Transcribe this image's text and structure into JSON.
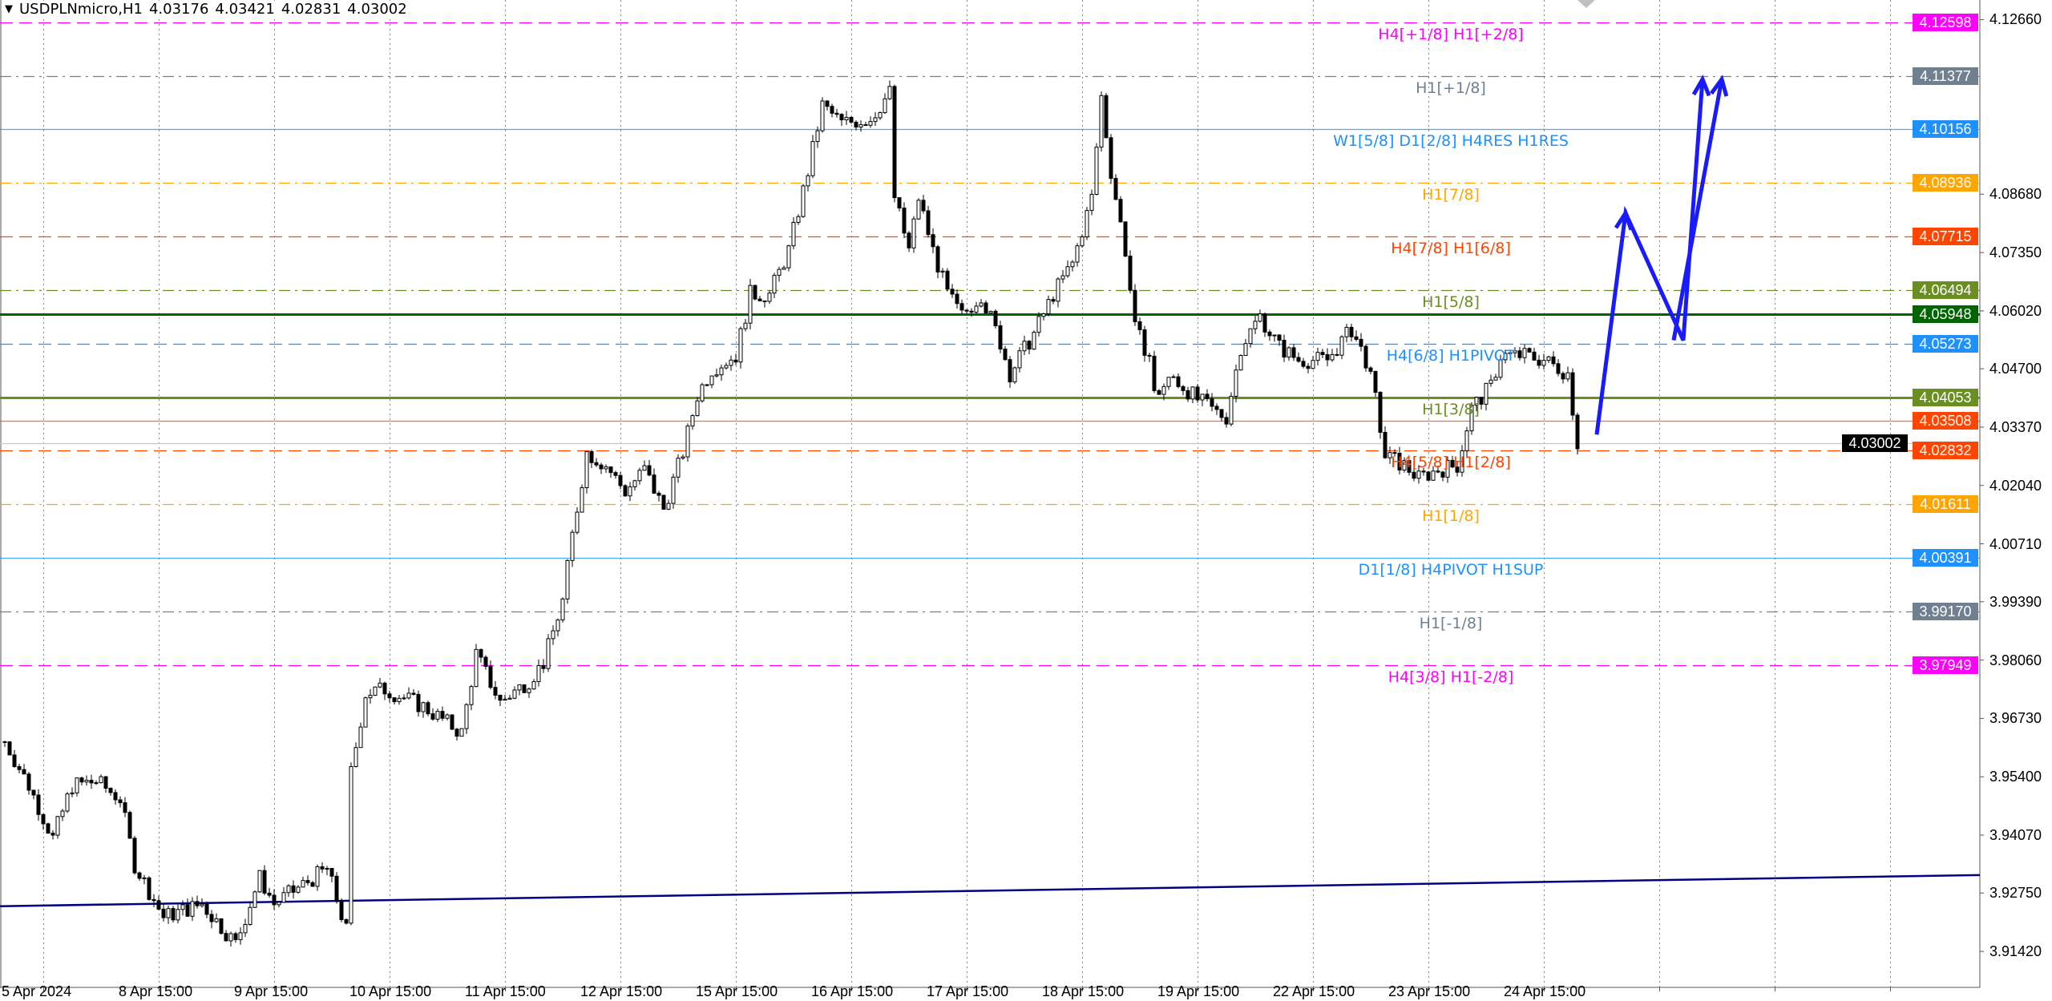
{
  "header": {
    "symbol": "USDPLNmicro,H1",
    "open": "4.03176",
    "high": "4.03421",
    "low": "4.02831",
    "close": "4.03002"
  },
  "chart_data": {
    "type": "candlestick",
    "timeframe": "H1",
    "ylim": [
      3.905,
      4.131
    ],
    "y_ticks": [
      "4.12660",
      "4.08680",
      "4.07350",
      "4.06020",
      "4.04700",
      "4.03370",
      "4.02040",
      "4.00710",
      "3.99390",
      "3.98060",
      "3.96730",
      "3.95400",
      "3.94070",
      "3.92750",
      "3.91420"
    ],
    "x_labels": [
      "5 Apr 2024",
      "8 Apr 15:00",
      "9 Apr 15:00",
      "10 Apr 15:00",
      "11 Apr 15:00",
      "12 Apr 15:00",
      "15 Apr 15:00",
      "16 Apr 15:00",
      "17 Apr 15:00",
      "18 Apr 15:00",
      "19 Apr 15:00",
      "22 Apr 15:00",
      "23 Apr 15:00",
      "24 Apr 15:00"
    ],
    "grid": "vertical dotted",
    "price_path": [
      [
        0,
        3.962
      ],
      [
        5,
        3.952
      ],
      [
        10,
        3.94
      ],
      [
        14,
        3.952
      ],
      [
        19,
        3.953
      ],
      [
        24,
        3.949
      ],
      [
        27,
        3.934
      ],
      [
        33,
        3.922
      ],
      [
        41,
        3.925
      ],
      [
        48,
        3.916
      ],
      [
        53,
        3.931
      ],
      [
        56,
        3.925
      ],
      [
        67,
        3.933
      ],
      [
        71,
        3.919
      ],
      [
        72,
        3.955
      ],
      [
        75,
        3.973
      ],
      [
        79,
        3.974
      ],
      [
        87,
        3.97
      ],
      [
        95,
        3.964
      ],
      [
        98,
        3.982
      ],
      [
        103,
        3.971
      ],
      [
        109,
        3.976
      ],
      [
        112,
        3.98
      ],
      [
        116,
        3.994
      ],
      [
        118,
        4.009
      ],
      [
        121,
        4.028
      ],
      [
        125,
        4.025
      ],
      [
        129,
        4.019
      ],
      [
        133,
        4.024
      ],
      [
        137,
        4.015
      ],
      [
        141,
        4.028
      ],
      [
        144,
        4.041
      ],
      [
        147,
        4.047
      ],
      [
        152,
        4.05
      ],
      [
        155,
        4.064
      ],
      [
        159,
        4.064
      ],
      [
        163,
        4.074
      ],
      [
        167,
        4.092
      ],
      [
        170,
        4.107
      ],
      [
        174,
        4.103
      ],
      [
        180,
        4.104
      ],
      [
        184,
        4.11
      ],
      [
        185,
        4.086
      ],
      [
        188,
        4.074
      ],
      [
        190,
        4.086
      ],
      [
        193,
        4.074
      ],
      [
        196,
        4.064
      ],
      [
        199,
        4.059
      ],
      [
        203,
        4.064
      ],
      [
        207,
        4.053
      ],
      [
        209,
        4.046
      ],
      [
        214,
        4.055
      ],
      [
        218,
        4.064
      ],
      [
        222,
        4.071
      ],
      [
        226,
        4.086
      ],
      [
        228,
        4.109
      ],
      [
        230,
        4.092
      ],
      [
        233,
        4.074
      ],
      [
        235,
        4.056
      ],
      [
        238,
        4.05
      ],
      [
        239,
        4.041
      ],
      [
        243,
        4.045
      ],
      [
        248,
        4.04
      ],
      [
        252,
        4.037
      ],
      [
        254,
        4.036
      ],
      [
        257,
        4.052
      ],
      [
        261,
        4.059
      ],
      [
        265,
        4.052
      ],
      [
        269,
        4.049
      ],
      [
        275,
        4.049
      ],
      [
        280,
        4.056
      ],
      [
        283,
        4.049
      ],
      [
        285,
        4.04
      ],
      [
        287,
        4.027
      ],
      [
        291,
        4.025
      ],
      [
        294,
        4.022
      ],
      [
        298,
        4.024
      ],
      [
        302,
        4.025
      ],
      [
        305,
        4.038
      ],
      [
        309,
        4.043
      ],
      [
        311,
        4.05
      ],
      [
        316,
        4.05
      ],
      [
        320,
        4.049
      ],
      [
        325,
        4.046
      ],
      [
        327,
        4.03
      ]
    ],
    "levels": [
      {
        "price": 4.12598,
        "value": "4.12598",
        "label": "H4[+1/8] H1[+2/8]",
        "color": "#ff00ff",
        "style": "dashed"
      },
      {
        "price": 4.11377,
        "value": "4.11377",
        "label": "H1[+1/8]",
        "color": "#708090",
        "style": "dashdot"
      },
      {
        "price": 4.10156,
        "value": "4.10156",
        "label": "W1[5/8] D1[2/8] H4RES H1RES",
        "color": "#1e90ff",
        "style": "solid"
      },
      {
        "price": 4.08936,
        "value": "4.08936",
        "label": "H1[7/8]",
        "color": "#ffa500",
        "style": "dashdot"
      },
      {
        "price": 4.07715,
        "value": "4.07715",
        "label": "H4[7/8] H1[6/8]",
        "color": "#ff4500",
        "style": "dashed"
      },
      {
        "price": 4.06494,
        "value": "4.06494",
        "label": "H1[5/8]",
        "color": "#6b8e23",
        "style": "dashdot"
      },
      {
        "price": 4.05948,
        "value": "4.05948",
        "label": "",
        "color": "#006400",
        "style": "thick"
      },
      {
        "price": 4.05273,
        "value": "4.05273",
        "label": "H4[6/8] H1PIVOT",
        "color": "#1e90ff",
        "style": "dashed"
      },
      {
        "price": 4.04053,
        "value": "4.04053",
        "label": "H1[3/8]",
        "color": "#6b8e23",
        "style": "thick"
      },
      {
        "price": 4.03508,
        "value": "4.03508",
        "label": "",
        "color": "#ff4500",
        "style": "solid"
      },
      {
        "price": 4.03002,
        "value": "4.03002",
        "label": "",
        "color": "#000000",
        "style": "current"
      },
      {
        "price": 4.02832,
        "value": "4.02832",
        "label": "H4[5/8] H1[2/8]",
        "color": "#ff4500",
        "style": "dashed"
      },
      {
        "price": 4.01611,
        "value": "4.01611",
        "label": "H1[1/8]",
        "color": "#ffa500",
        "style": "dashdot"
      },
      {
        "price": 4.00391,
        "value": "4.00391",
        "label": "D1[1/8] H4PIVOT H1SUP",
        "color": "#1e90ff",
        "style": "solid"
      },
      {
        "price": 3.9917,
        "value": "3.99170",
        "label": "H1[-1/8]",
        "color": "#708090",
        "style": "dashdot"
      },
      {
        "price": 3.97949,
        "value": "3.97949",
        "label": "H4[3/8] H1[-2/8]",
        "color": "#ff00ff",
        "style": "dashed"
      }
    ],
    "trendline": {
      "color": "#000080",
      "from": [
        0,
        3.9245
      ],
      "to": [
        411,
        3.9316
      ]
    },
    "forecast_arrow": {
      "color": "#1a1aff",
      "points": [
        [
          331,
          4.032
        ],
        [
          337,
          4.0825
        ],
        [
          349,
          4.0535
        ],
        [
          353,
          4.113
        ]
      ],
      "second_leg": [
        [
          347,
          4.0535
        ],
        [
          357,
          4.113
        ]
      ]
    }
  }
}
